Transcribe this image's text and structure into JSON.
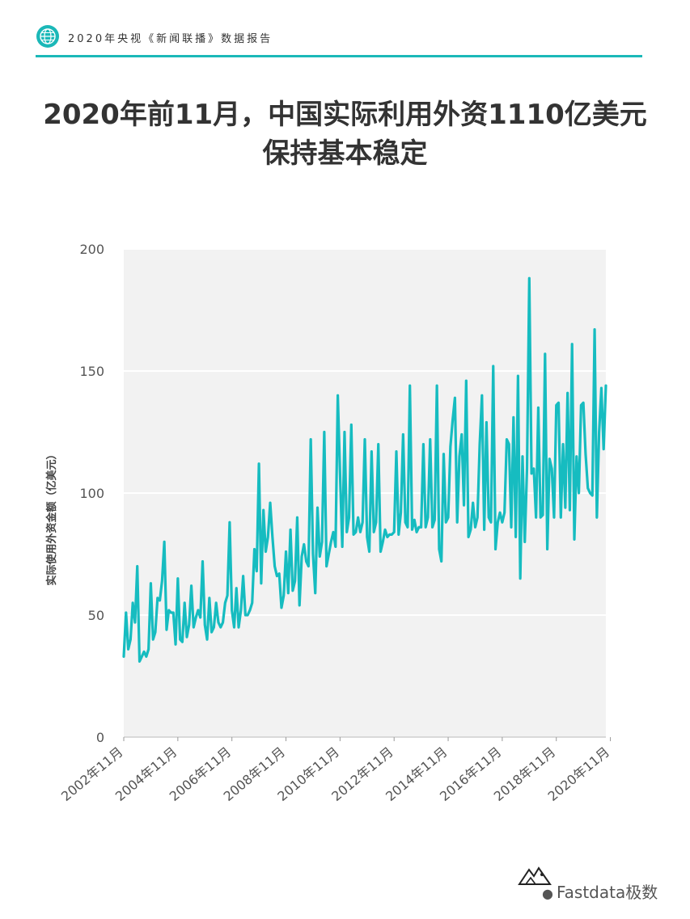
{
  "header": {
    "text": "2020年央视《新闻联播》数据报告",
    "icon": "globe-icon",
    "accent_color": "#1bb8b8"
  },
  "title": {
    "line1": "2020年前11月，中国实际利用外资1110亿美元",
    "line2": "保持基本稳定"
  },
  "chart_data": {
    "type": "line",
    "ylabel": "实际使用外资金额（亿美元）",
    "xlabel": "",
    "ylim": [
      0,
      200
    ],
    "yticks": [
      "0",
      "50",
      "100",
      "150",
      "200"
    ],
    "xticks": [
      "2002年11月",
      "2004年11月",
      "2006年11月",
      "2008年11月",
      "2010年11月",
      "2012年11月",
      "2014年11月",
      "2016年11月",
      "2018年11月",
      "2020年11月"
    ],
    "grid": "horizontal",
    "line_color": "#16bcc0",
    "plot_bg": "#f2f2f2",
    "x_start": "2002-11",
    "series": [
      {
        "values": [
          33,
          51,
          36,
          40,
          55,
          47,
          70,
          31,
          33,
          35,
          33,
          36,
          63,
          40,
          43,
          57,
          56,
          64,
          80,
          44,
          52,
          51,
          51,
          38,
          65,
          40,
          39,
          55,
          41,
          46,
          62,
          45,
          49,
          52,
          49,
          72,
          46,
          40,
          57,
          43,
          45,
          55,
          47,
          45,
          47,
          55,
          58,
          88,
          52,
          45,
          61,
          45,
          52,
          66,
          50,
          50,
          52,
          55,
          77,
          68,
          112,
          63,
          93,
          76,
          82,
          96,
          82,
          70,
          66,
          67,
          53,
          58,
          76,
          59,
          85,
          60,
          64,
          90,
          54,
          74,
          79,
          72,
          70,
          122,
          75,
          59,
          94,
          74,
          80,
          125,
          70,
          75,
          80,
          84,
          78,
          140,
          108,
          78,
          125,
          84,
          90,
          128,
          83,
          84,
          90,
          84,
          88,
          122,
          82,
          76,
          117,
          84,
          88,
          120,
          76,
          80,
          85,
          82,
          83,
          83,
          84,
          117,
          83,
          92,
          124,
          88,
          86,
          144,
          85,
          89,
          84,
          86,
          86,
          120,
          86,
          90,
          122,
          86,
          89,
          144,
          77,
          72,
          116,
          88,
          90,
          119,
          130,
          139,
          88,
          115,
          124,
          95,
          146,
          82,
          85,
          96,
          86,
          90,
          120,
          140,
          85,
          129,
          90,
          88,
          152,
          77,
          88,
          92,
          88,
          92,
          122,
          120,
          86,
          131,
          82,
          148,
          65,
          115,
          80,
          110,
          188,
          108,
          110,
          90,
          135,
          90,
          91,
          157,
          77,
          114,
          110,
          90,
          136,
          137,
          90,
          120,
          94,
          141,
          93,
          161,
          81,
          115,
          100,
          136,
          137,
          116,
          102,
          100,
          99,
          167,
          90,
          125,
          143,
          118,
          144
        ]
      }
    ]
  },
  "footer": {
    "logo_text": "Fastdata极数",
    "watermark": "Fastdata极数",
    "watermark_icon": "wechat-icon"
  }
}
